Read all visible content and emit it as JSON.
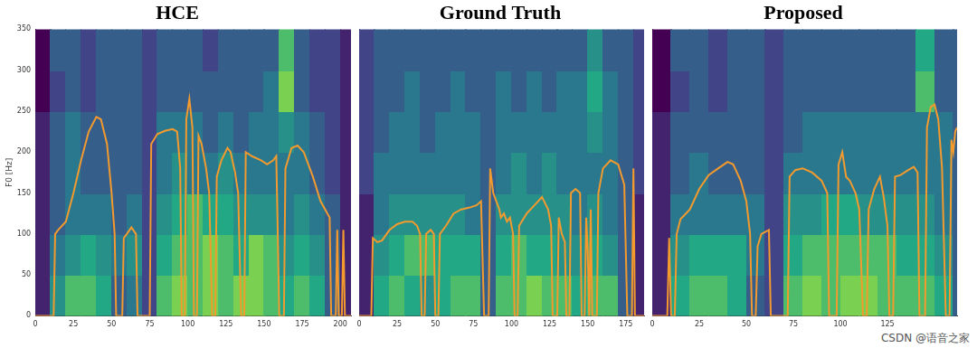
{
  "chart_data": [
    {
      "type": "line",
      "title": "HCE",
      "y_label": "F0 [Hz]",
      "color": "#f39a2e",
      "grid": false,
      "xlim": [
        0,
        207
      ],
      "xticks": [
        0,
        25,
        50,
        75,
        100,
        125,
        150,
        175,
        200
      ],
      "ylim": [
        0,
        350
      ],
      "yticks": [
        0,
        50,
        100,
        150,
        200,
        250,
        300,
        350
      ],
      "x": [
        0,
        12,
        13,
        15,
        20,
        25,
        30,
        35,
        40,
        43,
        47,
        50,
        52,
        53,
        57,
        58,
        60,
        63,
        66,
        67,
        75,
        76,
        80,
        85,
        90,
        93,
        95,
        96,
        98,
        99,
        101,
        103,
        104,
        106,
        107,
        109,
        112,
        114,
        116,
        118,
        119,
        122,
        126,
        128,
        131,
        133,
        135,
        137,
        138,
        142,
        148,
        152,
        156,
        158,
        160,
        163,
        164,
        168,
        172,
        176,
        182,
        187,
        193,
        194,
        197,
        198,
        199,
        201,
        202,
        203,
        207
      ],
      "values": [
        0,
        0,
        100,
        105,
        115,
        150,
        190,
        225,
        243,
        240,
        210,
        150,
        100,
        0,
        0,
        95,
        100,
        108,
        100,
        0,
        0,
        210,
        222,
        226,
        228,
        225,
        180,
        0,
        0,
        240,
        265,
        230,
        0,
        0,
        220,
        210,
        180,
        150,
        0,
        0,
        170,
        190,
        205,
        200,
        175,
        150,
        0,
        0,
        200,
        195,
        190,
        185,
        190,
        195,
        0,
        0,
        180,
        205,
        208,
        200,
        170,
        140,
        120,
        0,
        0,
        105,
        0,
        0,
        105,
        0,
        0
      ],
      "spectrogram": {
        "range": [
          0,
          10
        ],
        "x_edges": [
          0,
          10,
          20,
          30,
          40,
          50,
          60,
          70,
          80,
          90,
          100,
          110,
          120,
          130,
          140,
          150,
          160,
          170,
          180,
          190,
          200,
          207
        ],
        "y_edges": [
          0,
          50,
          100,
          150,
          200,
          250,
          300,
          350
        ],
        "cells": [
          [
            1,
            5,
            7,
            7,
            6,
            3,
            4,
            2,
            7,
            8,
            7,
            8,
            7,
            8,
            8,
            7,
            6,
            7,
            6,
            3,
            1
          ],
          [
            1,
            4,
            5,
            6,
            5,
            4,
            5,
            2,
            6,
            7,
            7,
            8,
            7,
            6,
            8,
            7,
            5,
            6,
            5,
            3,
            1
          ],
          [
            1,
            3,
            4,
            4,
            4,
            3,
            4,
            2,
            5,
            6,
            7,
            6,
            6,
            5,
            5,
            5,
            4,
            5,
            4,
            3,
            1
          ],
          [
            1,
            3,
            4,
            3,
            3,
            3,
            3,
            2,
            4,
            5,
            4,
            4,
            5,
            4,
            4,
            4,
            4,
            4,
            3,
            2,
            1
          ],
          [
            1,
            3,
            4,
            3,
            3,
            3,
            3,
            2,
            4,
            4,
            4,
            3,
            4,
            3,
            4,
            4,
            5,
            4,
            3,
            2,
            1
          ],
          [
            0,
            2,
            3,
            2,
            3,
            3,
            3,
            2,
            3,
            3,
            3,
            3,
            3,
            3,
            3,
            4,
            8,
            3,
            2,
            2,
            1
          ],
          [
            0,
            3,
            3,
            2,
            3,
            3,
            3,
            2,
            3,
            3,
            3,
            2,
            3,
            3,
            3,
            3,
            7,
            3,
            2,
            2,
            1
          ]
        ]
      }
    },
    {
      "type": "line",
      "title": "Ground Truth",
      "color": "#f39a2e",
      "grid": false,
      "tick_labels": "x",
      "xlim": [
        0,
        187
      ],
      "xticks": [
        0,
        25,
        50,
        75,
        100,
        125,
        150,
        175
      ],
      "ylim": [
        0,
        350
      ],
      "yticks": [
        0,
        50,
        100,
        150,
        200,
        250,
        300,
        350
      ],
      "x": [
        0,
        8,
        9,
        12,
        15,
        20,
        25,
        30,
        35,
        38,
        40,
        41,
        43,
        44,
        47,
        49,
        50,
        52,
        53,
        57,
        62,
        67,
        72,
        77,
        80,
        82,
        85,
        86,
        88,
        90,
        92,
        93,
        95,
        97,
        99,
        101,
        102,
        104,
        105,
        110,
        115,
        120,
        124,
        126,
        127,
        130,
        131,
        133,
        135,
        136,
        138,
        139,
        142,
        145,
        146,
        148,
        149,
        150,
        151,
        152,
        153,
        156,
        157,
        160,
        165,
        170,
        174,
        176,
        179,
        180,
        181,
        187
      ],
      "values": [
        0,
        0,
        95,
        90,
        92,
        105,
        112,
        115,
        115,
        110,
        100,
        0,
        0,
        100,
        105,
        100,
        0,
        0,
        100,
        110,
        125,
        130,
        132,
        135,
        140,
        0,
        0,
        180,
        150,
        140,
        130,
        120,
        125,
        115,
        120,
        100,
        0,
        0,
        110,
        125,
        135,
        145,
        130,
        110,
        0,
        0,
        120,
        100,
        90,
        0,
        0,
        150,
        155,
        150,
        0,
        0,
        120,
        80,
        0,
        130,
        0,
        0,
        150,
        180,
        190,
        185,
        160,
        0,
        0,
        180,
        0,
        0
      ],
      "spectrogram": {
        "range": [
          0,
          10
        ],
        "x_edges": [
          0,
          10,
          20,
          30,
          40,
          50,
          60,
          70,
          80,
          90,
          100,
          110,
          120,
          130,
          140,
          150,
          160,
          170,
          180,
          187
        ],
        "y_edges": [
          0,
          50,
          100,
          150,
          200,
          250,
          300,
          350
        ],
        "cells": [
          [
            1,
            6,
            7,
            6,
            5,
            6,
            7,
            7,
            3,
            7,
            7,
            8,
            7,
            7,
            6,
            7,
            7,
            3,
            1
          ],
          [
            1,
            5,
            6,
            7,
            7,
            6,
            6,
            6,
            3,
            6,
            7,
            6,
            6,
            5,
            5,
            6,
            5,
            3,
            1
          ],
          [
            1,
            4,
            5,
            5,
            5,
            5,
            5,
            4,
            3,
            5,
            5,
            5,
            5,
            5,
            4,
            5,
            4,
            3,
            1
          ],
          [
            2,
            4,
            4,
            4,
            4,
            4,
            4,
            4,
            3,
            4,
            5,
            4,
            5,
            4,
            4,
            4,
            4,
            3,
            2
          ],
          [
            2,
            3,
            4,
            4,
            3,
            4,
            4,
            4,
            3,
            4,
            4,
            4,
            4,
            4,
            4,
            5,
            4,
            3,
            2
          ],
          [
            2,
            3,
            3,
            4,
            3,
            3,
            4,
            3,
            3,
            4,
            3,
            4,
            3,
            4,
            4,
            6,
            4,
            3,
            2
          ],
          [
            2,
            3,
            3,
            3,
            3,
            3,
            3,
            3,
            3,
            3,
            3,
            3,
            3,
            3,
            3,
            5,
            3,
            3,
            2
          ]
        ]
      }
    },
    {
      "type": "line",
      "title": "Proposed",
      "color": "#f39a2e",
      "grid": false,
      "tick_labels": "x",
      "xlim": [
        0,
        162
      ],
      "xticks": [
        0,
        25,
        50,
        75,
        100,
        125
      ],
      "ylim": [
        0,
        350
      ],
      "yticks": [
        0,
        50,
        100,
        150,
        200,
        250,
        300,
        350
      ],
      "x": [
        0,
        8,
        9,
        10,
        12,
        13,
        15,
        20,
        25,
        30,
        35,
        40,
        43,
        47,
        50,
        52,
        53,
        55,
        56,
        58,
        62,
        63,
        72,
        73,
        76,
        80,
        85,
        90,
        93,
        94,
        98,
        99,
        101,
        103,
        105,
        108,
        110,
        112,
        114,
        115,
        118,
        121,
        123,
        125,
        126,
        128,
        129,
        132,
        136,
        139,
        141,
        142,
        145,
        146,
        148,
        150,
        152,
        154,
        156,
        158,
        159,
        160,
        161,
        162
      ],
      "values": [
        0,
        0,
        95,
        0,
        0,
        100,
        118,
        130,
        155,
        172,
        180,
        188,
        185,
        165,
        140,
        100,
        0,
        0,
        85,
        100,
        105,
        0,
        0,
        170,
        178,
        180,
        175,
        165,
        150,
        0,
        0,
        185,
        200,
        170,
        165,
        150,
        130,
        0,
        0,
        130,
        155,
        170,
        145,
        110,
        0,
        0,
        170,
        172,
        178,
        182,
        175,
        0,
        0,
        230,
        255,
        258,
        240,
        180,
        0,
        0,
        215,
        200,
        225,
        230
      ],
      "spectrogram": {
        "range": [
          0,
          10
        ],
        "x_edges": [
          0,
          10,
          20,
          30,
          40,
          50,
          60,
          70,
          80,
          90,
          100,
          110,
          120,
          130,
          140,
          150,
          160,
          162
        ],
        "y_edges": [
          0,
          50,
          100,
          150,
          200,
          250,
          300,
          350
        ],
        "cells": [
          [
            1,
            6,
            7,
            7,
            6,
            3,
            2,
            7,
            8,
            7,
            8,
            8,
            7,
            7,
            7,
            6,
            3
          ],
          [
            1,
            5,
            6,
            6,
            6,
            4,
            2,
            6,
            7,
            7,
            7,
            7,
            7,
            6,
            6,
            5,
            3
          ],
          [
            1,
            4,
            4,
            4,
            4,
            4,
            2,
            5,
            5,
            6,
            6,
            5,
            5,
            5,
            5,
            4,
            3
          ],
          [
            1,
            3,
            4,
            3,
            3,
            3,
            2,
            4,
            4,
            4,
            4,
            4,
            4,
            4,
            4,
            4,
            3
          ],
          [
            1,
            3,
            3,
            3,
            3,
            3,
            2,
            3,
            4,
            4,
            4,
            4,
            4,
            4,
            4,
            4,
            3
          ],
          [
            0,
            2,
            3,
            2,
            3,
            3,
            2,
            3,
            3,
            3,
            3,
            3,
            3,
            3,
            7,
            3,
            3
          ],
          [
            0,
            3,
            3,
            2,
            3,
            3,
            2,
            3,
            3,
            3,
            3,
            3,
            3,
            3,
            6,
            3,
            3
          ]
        ]
      }
    }
  ],
  "watermark": "CSDN @语音之家"
}
